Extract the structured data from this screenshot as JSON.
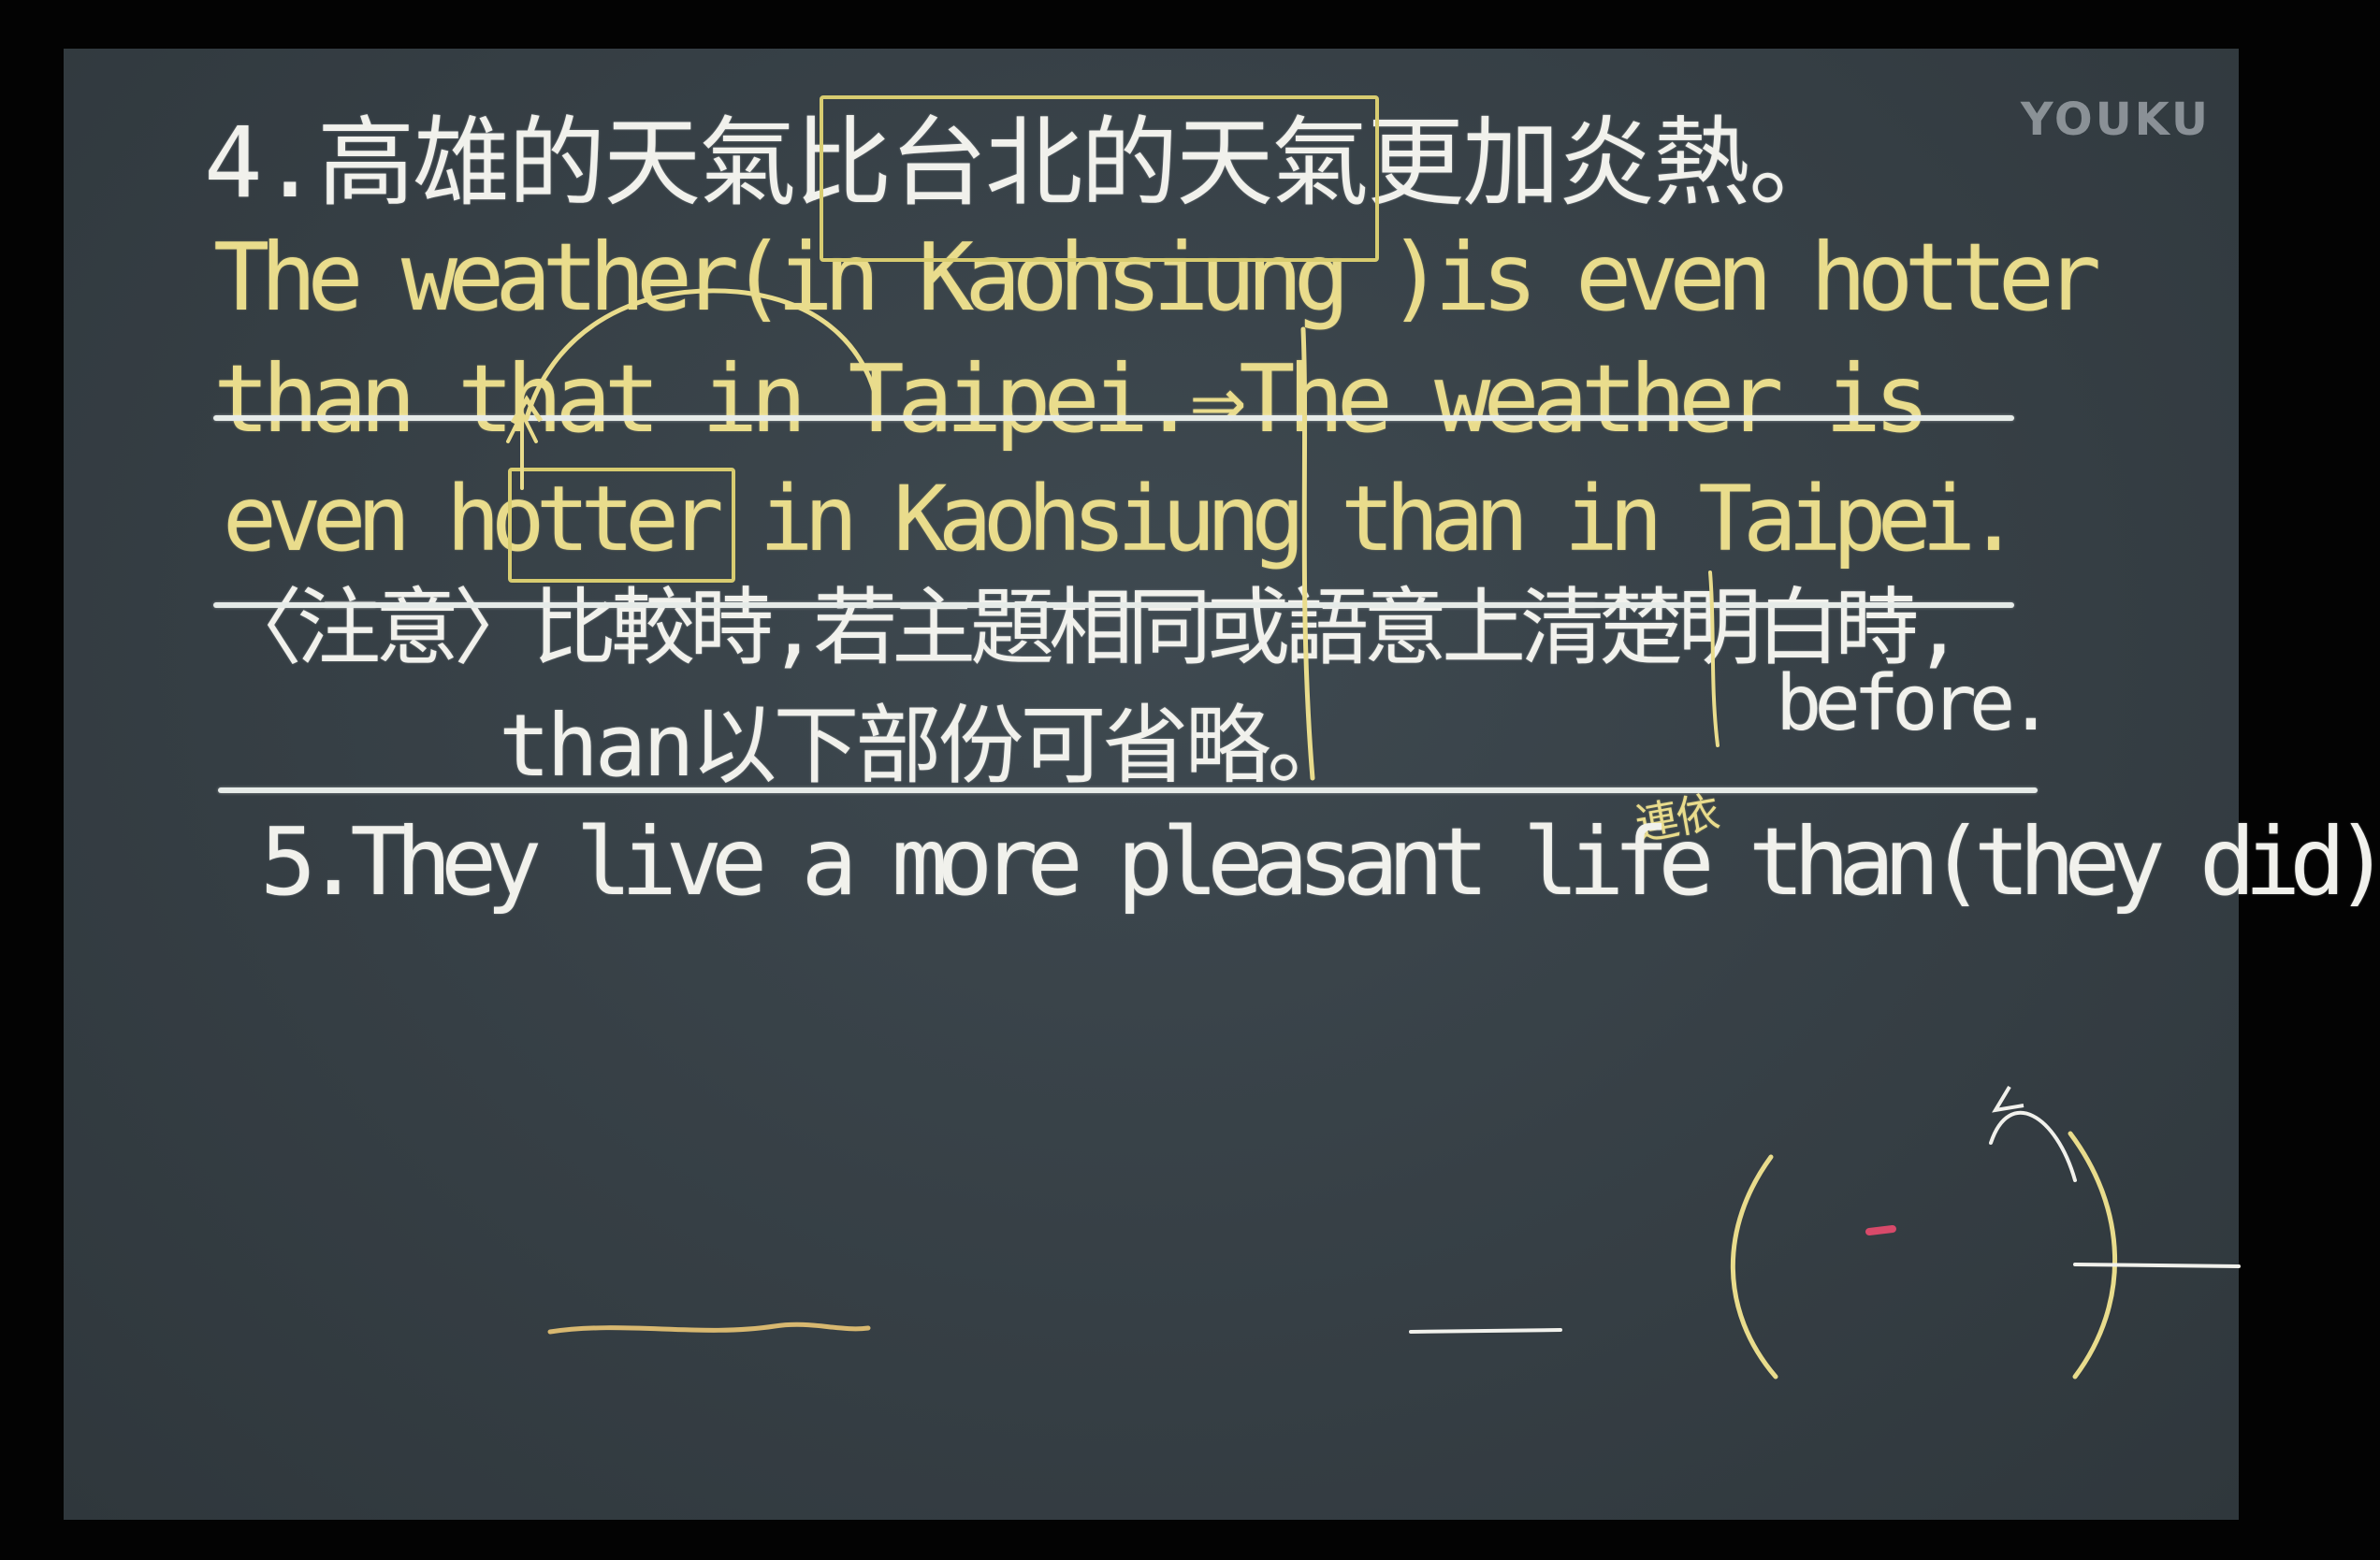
{
  "watermark": "YOUKU",
  "lines": {
    "l4_zh": "4.高雄的天氣比台北的天氣更加炎熱。",
    "l4_en1": "The weather(in Kaohsiung )is even hotter",
    "l4_en2": "than that in Taipei.⇒The weather is",
    "l4_en3": "even hotter in Kaohsiung than in Taipei.",
    "note1": "〈注意〉比較時,若主題相同或語意上清楚明白時,",
    "note2": "than以下部份可省略。",
    "l5": "5.They live a more pleasant life than(they did)",
    "l5_above": "before.",
    "l5_small": "連依"
  },
  "colors": {
    "board": "#373f45",
    "chalk_white": "#f1f1ec",
    "chalk_yellow": "#e9dc8c",
    "frame": "#030303"
  }
}
